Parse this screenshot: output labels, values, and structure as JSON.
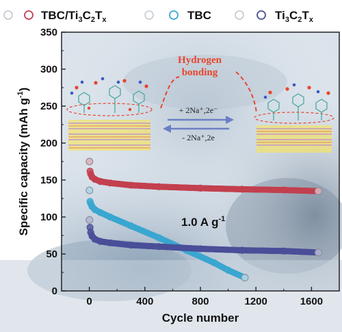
{
  "chart_data": {
    "type": "scatter",
    "xlabel": "Cycle number",
    "ylabel": "Specific capacity (mAh g",
    "ylabel_sup": "-1",
    "ylabel_end": ")",
    "xlim": [
      -200,
      1800
    ],
    "ylim": [
      0,
      350
    ],
    "xticks": [
      0,
      400,
      800,
      1200,
      1600
    ],
    "yticks": [
      0,
      50,
      100,
      150,
      200,
      250,
      300,
      350
    ],
    "xtick_labels": [
      "0",
      "400",
      "800",
      "1200",
      "1600"
    ],
    "ytick_labels": [
      "0",
      "50",
      "100",
      "150",
      "200",
      "250",
      "300",
      "350"
    ],
    "legend_position": "top",
    "series": [
      {
        "name": "TBC/Ti3C2Tx",
        "name_parts": [
          "TBC/Ti",
          "3",
          "C",
          "2",
          "T",
          "x"
        ],
        "color": "#c3404f",
        "x": [
          1,
          5,
          10,
          20,
          40,
          80,
          150,
          300,
          500,
          800,
          1100,
          1400,
          1650
        ],
        "y": [
          175,
          162,
          158,
          154,
          151,
          148,
          146,
          143,
          141,
          139,
          137.5,
          136.5,
          135
        ]
      },
      {
        "name": "TBC",
        "name_parts": [
          "TBC"
        ],
        "color": "#3aa7d0",
        "x": [
          1,
          5,
          10,
          20,
          40,
          80,
          150,
          300,
          500,
          700,
          900,
          1000,
          1120
        ],
        "y": [
          136,
          121,
          118,
          114,
          110,
          106,
          100,
          88,
          72,
          55,
          38,
          28,
          18
        ]
      },
      {
        "name": "Ti3C2Tx",
        "name_parts": [
          "Ti",
          "3",
          "C",
          "2",
          "T",
          "x"
        ],
        "color": "#4b4f99",
        "x": [
          1,
          5,
          10,
          20,
          40,
          80,
          150,
          300,
          500,
          800,
          1100,
          1400,
          1650
        ],
        "y": [
          96,
          86,
          79,
          74,
          70,
          67,
          65,
          62,
          60,
          57,
          55,
          54,
          52
        ]
      }
    ],
    "annotations": {
      "rate_label": "1.0 A g",
      "rate_sup": "-1",
      "hydrogen_bonding_line1": "Hydrogen",
      "hydrogen_bonding_line2": "bonding",
      "forward_reaction": "+ 2Na⁺,2e⁻",
      "reverse_reaction": "- 2Na⁺,2e"
    }
  }
}
